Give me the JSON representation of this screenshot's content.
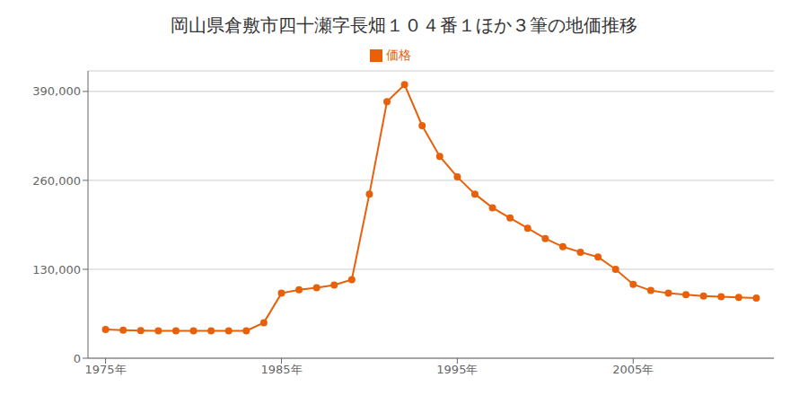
{
  "chart_data": {
    "type": "line",
    "title": "岡山県倉敷市四十瀬字長畑１０４番１ほか３筆の地価推移",
    "x": [
      1975,
      1976,
      1977,
      1978,
      1979,
      1980,
      1981,
      1982,
      1983,
      1984,
      1985,
      1986,
      1987,
      1988,
      1989,
      1990,
      1991,
      1992,
      1993,
      1994,
      1995,
      1996,
      1997,
      1998,
      1999,
      2000,
      2001,
      2002,
      2003,
      2004,
      2005,
      2006,
      2007,
      2008,
      2009,
      2010,
      2011,
      2012
    ],
    "series": [
      {
        "name": "価格",
        "color": "#E8610A",
        "marker": "circle",
        "values": [
          42000,
          41000,
          40500,
          40000,
          40000,
          40000,
          40000,
          40000,
          40000,
          52000,
          95000,
          100000,
          103000,
          107000,
          115000,
          240000,
          375000,
          400000,
          340000,
          295000,
          265000,
          240000,
          220000,
          205000,
          190000,
          175000,
          163000,
          155000,
          148000,
          130000,
          108000,
          99000,
          95000,
          93000,
          91000,
          90000,
          89000,
          88000
        ]
      }
    ],
    "xlim": [
      1974,
      2013
    ],
    "xticks": [
      {
        "value": 1975,
        "label": "1975年"
      },
      {
        "value": 1985,
        "label": "1985年"
      },
      {
        "value": 1995,
        "label": "1995年"
      },
      {
        "value": 2005,
        "label": "2005年"
      }
    ],
    "ylim": [
      0,
      420000
    ],
    "yticks": [
      0,
      {
        "value": 130000,
        "label": "130,000"
      },
      {
        "value": 260000,
        "label": "260,000"
      },
      {
        "value": 390000,
        "label": "390,000"
      }
    ],
    "grid": "y",
    "legend": "top"
  }
}
